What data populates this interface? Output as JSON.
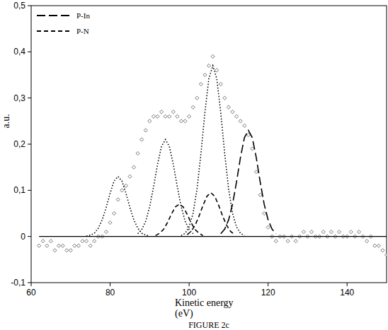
{
  "chart_data": {
    "type": "line",
    "caption": "FIGURE 2c",
    "x_label": [
      "Kinetic energy",
      "(eV)"
    ],
    "y_label": "a.u.",
    "xlim": [
      60,
      150
    ],
    "ylim": [
      -0.1,
      0.5
    ],
    "xticks": [
      60,
      80,
      100,
      120,
      140
    ],
    "yticks": [
      {
        "value": -0.1,
        "label": "-0,1"
      },
      0,
      {
        "value": 0.1,
        "label": "0,1"
      },
      {
        "value": 0.2,
        "label": "0,2"
      },
      {
        "value": 0.3,
        "label": "0,3"
      },
      {
        "value": 0.4,
        "label": "0,4"
      },
      {
        "value": 0.5,
        "label": "0,5"
      }
    ],
    "legend": "top-left",
    "grid": false,
    "series": [
      {
        "type": "scatter",
        "marker": "diamond",
        "color": "#555555",
        "x": [
          62,
          63,
          64,
          65,
          66,
          67,
          68,
          69,
          70,
          71,
          72,
          73,
          74,
          75,
          76,
          77,
          78,
          79,
          80,
          81,
          82,
          83,
          84,
          85,
          86,
          87,
          88,
          89,
          90,
          91,
          92,
          93,
          94,
          95,
          96,
          97,
          98,
          99,
          100,
          101,
          102,
          103,
          104,
          105,
          106,
          107,
          108,
          109,
          110,
          111,
          112,
          113,
          114,
          115,
          116,
          117,
          118,
          119,
          120,
          121,
          122,
          123,
          124,
          125,
          126,
          127,
          128,
          129,
          130,
          131,
          132,
          133,
          134,
          135,
          136,
          137,
          138,
          139,
          140,
          141,
          142,
          143,
          144,
          145,
          146,
          147,
          148,
          149,
          150
        ],
        "values": [
          -0.02,
          -0.01,
          -0.02,
          -0.01,
          -0.03,
          -0.02,
          -0.02,
          -0.03,
          -0.03,
          -0.02,
          -0.02,
          -0.01,
          -0.01,
          -0.02,
          -0.01,
          0.0,
          0.0,
          0.01,
          0.03,
          0.05,
          0.08,
          0.1,
          0.11,
          0.13,
          0.15,
          0.18,
          0.21,
          0.23,
          0.25,
          0.26,
          0.26,
          0.27,
          0.26,
          0.26,
          0.27,
          0.26,
          0.25,
          0.25,
          0.26,
          0.28,
          0.3,
          0.33,
          0.35,
          0.37,
          0.39,
          0.36,
          0.33,
          0.3,
          0.28,
          0.27,
          0.26,
          0.25,
          0.24,
          0.22,
          0.19,
          0.14,
          0.09,
          0.05,
          0.02,
          0.0,
          -0.01,
          0.0,
          0.0,
          -0.01,
          0.0,
          -0.01,
          0.0,
          0.01,
          0.0,
          0.01,
          0.0,
          0.0,
          0.01,
          0.0,
          0.01,
          0.0,
          0.01,
          0.0,
          0.0,
          0.01,
          0.0,
          0.01,
          0.0,
          -0.01,
          0.0,
          -0.02,
          -0.02,
          -0.03,
          -0.04
        ]
      },
      {
        "type": "line",
        "line_style": "dotted",
        "color": "#000000",
        "x": [
          74,
          75,
          76,
          77,
          78,
          79,
          80,
          81,
          82,
          83,
          84,
          85,
          86,
          87,
          88,
          89,
          90
        ],
        "values": [
          0.001,
          0.003,
          0.007,
          0.018,
          0.036,
          0.063,
          0.094,
          0.12,
          0.13,
          0.12,
          0.094,
          0.063,
          0.036,
          0.018,
          0.007,
          0.003,
          0.001
        ]
      },
      {
        "type": "line",
        "line_style": "dotted",
        "color": "#000000",
        "x": [
          87,
          88,
          89,
          90,
          91,
          92,
          93,
          94,
          95,
          96,
          97,
          98,
          99,
          100,
          101
        ],
        "values": [
          0.006,
          0.015,
          0.033,
          0.064,
          0.108,
          0.156,
          0.195,
          0.21,
          0.195,
          0.156,
          0.108,
          0.064,
          0.033,
          0.015,
          0.006
        ]
      },
      {
        "type": "line",
        "line_style": "dotted",
        "color": "#000000",
        "x": [
          98,
          99,
          100,
          101,
          102,
          103,
          104,
          105,
          106,
          107,
          108,
          109,
          110,
          111,
          112,
          113,
          114
        ],
        "values": [
          0.002,
          0.007,
          0.021,
          0.05,
          0.103,
          0.18,
          0.269,
          0.342,
          0.37,
          0.342,
          0.269,
          0.18,
          0.103,
          0.05,
          0.021,
          0.007,
          0.002
        ]
      },
      {
        "name": "P-In",
        "type": "line",
        "line_style": "dashed",
        "color": "#000000",
        "x": [
          108,
          109,
          110,
          111,
          112,
          113,
          114,
          115,
          116,
          117,
          118,
          119,
          120,
          121,
          122
        ],
        "values": [
          0.006,
          0.016,
          0.036,
          0.07,
          0.118,
          0.171,
          0.214,
          0.23,
          0.214,
          0.171,
          0.118,
          0.07,
          0.036,
          0.016,
          0.006
        ]
      },
      {
        "name": "P-N",
        "type": "line",
        "line_style": "short-dashed",
        "color": "#000000",
        "x": [
          91.5,
          92.5,
          93.5,
          94.5,
          95.5,
          96.5,
          97.5,
          98.5,
          99.5,
          100.5,
          101.5,
          102.5,
          103.5,
          null,
          99.5,
          100.5,
          101.5,
          102.5,
          103.5,
          104.5,
          105.5,
          106.5,
          107.5,
          108.5,
          109.5,
          110.5,
          111.5
        ],
        "values": [
          0.002,
          0.007,
          0.015,
          0.03,
          0.048,
          0.064,
          0.07,
          0.064,
          0.048,
          0.03,
          0.015,
          0.007,
          0.002,
          null,
          0.004,
          0.011,
          0.024,
          0.044,
          0.067,
          0.087,
          0.095,
          0.087,
          0.067,
          0.044,
          0.024,
          0.011,
          0.004
        ]
      },
      {
        "type": "line",
        "line_style": "solid",
        "color": "#000000",
        "x": [
          62,
          150
        ],
        "values": [
          0,
          0
        ]
      }
    ]
  }
}
